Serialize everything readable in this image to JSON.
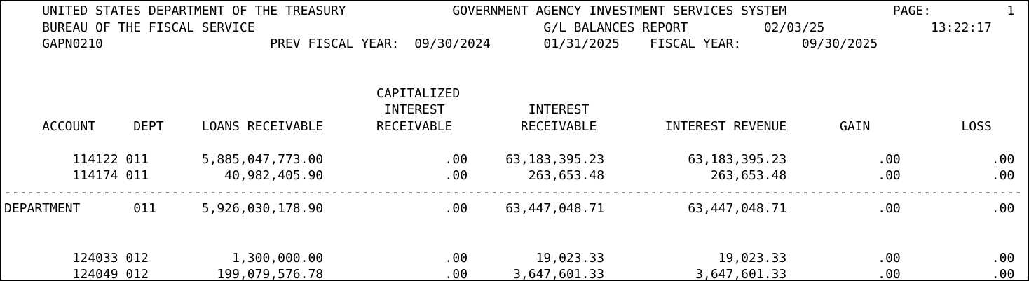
{
  "header": {
    "line1": {
      "agency": "UNITED STATES DEPARTMENT OF THE TREASURY",
      "system": "GOVERNMENT AGENCY INVESTMENT SERVICES SYSTEM",
      "page_label": "PAGE:",
      "page_number": "1"
    },
    "line2": {
      "bureau": "BUREAU OF THE FISCAL SERVICE",
      "report_name": "G/L BALANCES REPORT",
      "report_date": "02/03/25",
      "report_time": "13:22:17"
    },
    "line3": {
      "program_id": "GAPN0210",
      "prev_fiscal_year_label": "PREV FISCAL YEAR:",
      "prev_fiscal_year_date": "09/30/2024",
      "as_of_date": "01/31/2025",
      "fiscal_year_label": "FISCAL YEAR:",
      "fiscal_year_date": "09/30/2025"
    }
  },
  "columns": {
    "account": "ACCOUNT",
    "dept": "DEPT",
    "loans_receivable": "LOANS RECEIVABLE",
    "capitalized_line1": "CAPITALIZED",
    "capitalized_line2": "INTEREST",
    "capitalized_line3": "RECEIVABLE",
    "interest_line1": "INTEREST",
    "interest_line2": "RECEIVABLE",
    "interest_revenue": "INTEREST REVENUE",
    "gain": "GAIN",
    "loss": "LOSS"
  },
  "rows": [
    {
      "account": "114122",
      "dept": "011",
      "loans_receivable": "5,885,047,773.00",
      "capitalized_interest_receivable": ".00",
      "interest_receivable": "63,183,395.23",
      "interest_revenue": "63,183,395.23",
      "gain": ".00",
      "loss": ".00"
    },
    {
      "account": "114174",
      "dept": "011",
      "loans_receivable": "40,982,405.90",
      "capitalized_interest_receivable": ".00",
      "interest_receivable": "263,653.48",
      "interest_revenue": "263,653.48",
      "gain": ".00",
      "loss": ".00"
    },
    {
      "account": "124033",
      "dept": "012",
      "loans_receivable": "1,300,000.00",
      "capitalized_interest_receivable": ".00",
      "interest_receivable": "19,023.33",
      "interest_revenue": "19,023.33",
      "gain": ".00",
      "loss": ".00"
    },
    {
      "account": "124049",
      "dept": "012",
      "loans_receivable": "199,079,576.78",
      "capitalized_interest_receivable": ".00",
      "interest_receivable": "3,647,601.33",
      "interest_revenue": "3,647,601.33",
      "gain": ".00",
      "loss": ".00"
    }
  ],
  "department_total": {
    "label": "DEPARTMENT",
    "dept": "011",
    "loans_receivable": "5,926,030,178.90",
    "capitalized_interest_receivable": ".00",
    "interest_receivable": "63,447,048.71",
    "interest_revenue": "63,447,048.71",
    "gain": ".00",
    "loss": ".00"
  },
  "separator": "--------------------------------------------------------------------------------------------------------------------------------------",
  "colors": {
    "text": "#000000",
    "background": "#ffffff",
    "border": "#000000"
  }
}
